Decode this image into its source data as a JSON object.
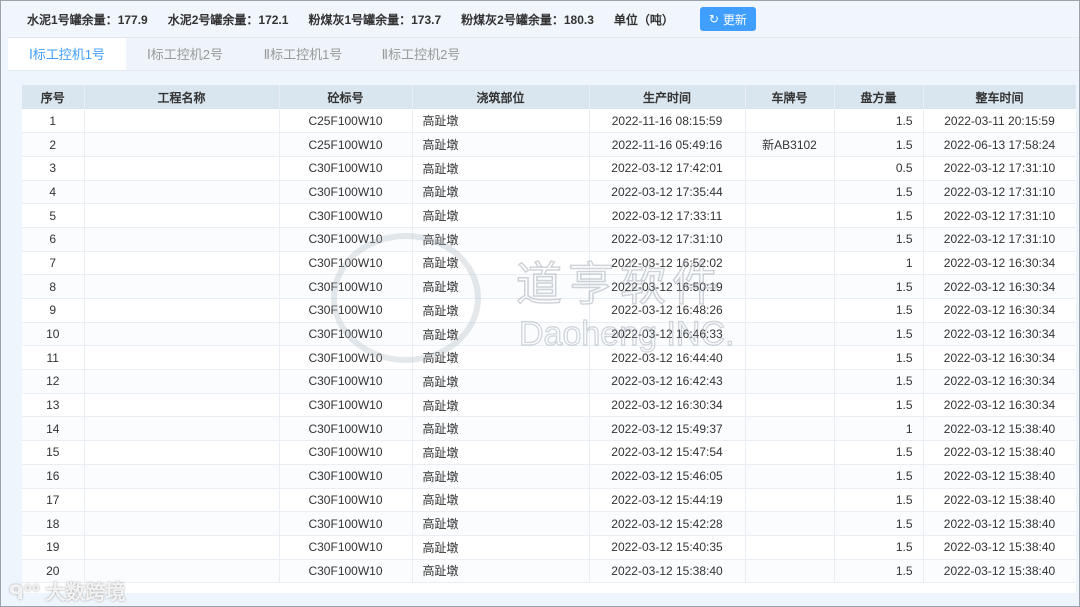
{
  "topbar": {
    "stats": [
      {
        "label": "水泥1号罐余量：",
        "value": "177.9"
      },
      {
        "label": "水泥2号罐余量：",
        "value": "172.1"
      },
      {
        "label": "粉煤灰1号罐余量：",
        "value": "173.7"
      },
      {
        "label": "粉煤灰2号罐余量：",
        "value": "180.3"
      }
    ],
    "unit": "单位（吨）",
    "refresh_label": "更新",
    "refresh_icon": "refresh-icon",
    "accent": "#409eff"
  },
  "tabs": [
    {
      "label": "Ⅰ标工控机1号",
      "active": true
    },
    {
      "label": "Ⅰ标工控机2号"
    },
    {
      "label": "Ⅱ标工控机1号"
    },
    {
      "label": "Ⅱ标工控机2号"
    }
  ],
  "table": {
    "columns": [
      "序号",
      "工程名称",
      "砼标号",
      "浇筑部位",
      "生产时间",
      "车牌号",
      "盘方量",
      "整车时间"
    ],
    "rows": [
      [
        "1",
        "",
        "C25F100W10",
        "高趾墩",
        "2022-11-16 08:15:59",
        "",
        "1.5",
        "2022-03-11 20:15:59"
      ],
      [
        "2",
        "",
        "C25F100W10",
        "高趾墩",
        "2022-11-16 05:49:16",
        "新AB3102",
        "1.5",
        "2022-06-13 17:58:24"
      ],
      [
        "3",
        "",
        "C30F100W10",
        "高趾墩",
        "2022-03-12 17:42:01",
        "",
        "0.5",
        "2022-03-12 17:31:10"
      ],
      [
        "4",
        "",
        "C30F100W10",
        "高趾墩",
        "2022-03-12 17:35:44",
        "",
        "1.5",
        "2022-03-12 17:31:10"
      ],
      [
        "5",
        "",
        "C30F100W10",
        "高趾墩",
        "2022-03-12 17:33:11",
        "",
        "1.5",
        "2022-03-12 17:31:10"
      ],
      [
        "6",
        "",
        "C30F100W10",
        "高趾墩",
        "2022-03-12 17:31:10",
        "",
        "1.5",
        "2022-03-12 17:31:10"
      ],
      [
        "7",
        "",
        "C30F100W10",
        "高趾墩",
        "2022-03-12 16:52:02",
        "",
        "1",
        "2022-03-12 16:30:34"
      ],
      [
        "8",
        "",
        "C30F100W10",
        "高趾墩",
        "2022-03-12 16:50:19",
        "",
        "1.5",
        "2022-03-12 16:30:34"
      ],
      [
        "9",
        "",
        "C30F100W10",
        "高趾墩",
        "2022-03-12 16:48:26",
        "",
        "1.5",
        "2022-03-12 16:30:34"
      ],
      [
        "10",
        "",
        "C30F100W10",
        "高趾墩",
        "2022-03-12 16:46:33",
        "",
        "1.5",
        "2022-03-12 16:30:34"
      ],
      [
        "11",
        "",
        "C30F100W10",
        "高趾墩",
        "2022-03-12 16:44:40",
        "",
        "1.5",
        "2022-03-12 16:30:34"
      ],
      [
        "12",
        "",
        "C30F100W10",
        "高趾墩",
        "2022-03-12 16:42:43",
        "",
        "1.5",
        "2022-03-12 16:30:34"
      ],
      [
        "13",
        "",
        "C30F100W10",
        "高趾墩",
        "2022-03-12 16:30:34",
        "",
        "1.5",
        "2022-03-12 16:30:34"
      ],
      [
        "14",
        "",
        "C30F100W10",
        "高趾墩",
        "2022-03-12 15:49:37",
        "",
        "1",
        "2022-03-12 15:38:40"
      ],
      [
        "15",
        "",
        "C30F100W10",
        "高趾墩",
        "2022-03-12 15:47:54",
        "",
        "1.5",
        "2022-03-12 15:38:40"
      ],
      [
        "16",
        "",
        "C30F100W10",
        "高趾墩",
        "2022-03-12 15:46:05",
        "",
        "1.5",
        "2022-03-12 15:38:40"
      ],
      [
        "17",
        "",
        "C30F100W10",
        "高趾墩",
        "2022-03-12 15:44:19",
        "",
        "1.5",
        "2022-03-12 15:38:40"
      ],
      [
        "18",
        "",
        "C30F100W10",
        "高趾墩",
        "2022-03-12 15:42:28",
        "",
        "1.5",
        "2022-03-12 15:38:40"
      ],
      [
        "19",
        "",
        "C30F100W10",
        "高趾墩",
        "2022-03-12 15:40:35",
        "",
        "1.5",
        "2022-03-12 15:38:40"
      ],
      [
        "20",
        "",
        "C30F100W10",
        "高趾墩",
        "2022-03-12 15:38:40",
        "",
        "1.5",
        "2022-03-12 15:38:40"
      ]
    ]
  },
  "watermark": {
    "cn": "道亨软件",
    "en": "Daoheng INC.",
    "corner_logo": "大数跨境"
  }
}
